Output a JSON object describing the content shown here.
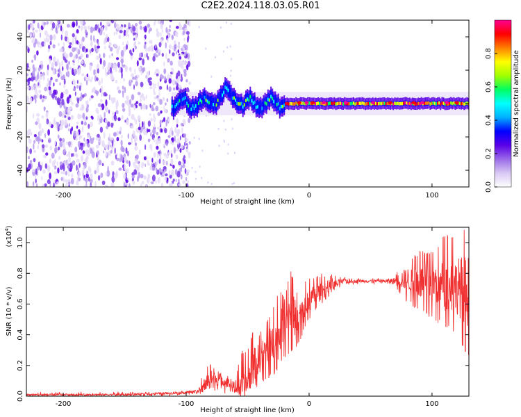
{
  "title": "C2E2.2024.118.03.05.R01",
  "colors": {
    "snr_line": "#f03030",
    "colormap": [
      "#ffffff",
      "#d8c8f4",
      "#9a6ae8",
      "#5a00e6",
      "#0000ff",
      "#00b0ff",
      "#00ffff",
      "#00ff60",
      "#a0ff00",
      "#ffff00",
      "#ff8000",
      "#ff0000",
      "#ff0090"
    ]
  },
  "chart_data": [
    {
      "type": "heatmap",
      "xlabel": "Height of straight line (km)",
      "ylabel": "Frequency (Hz)",
      "xlim": [
        -230,
        130
      ],
      "ylim": [
        -50,
        50
      ],
      "xticks": [
        -200,
        -100,
        0,
        100
      ],
      "yticks": [
        -40,
        -20,
        0,
        20,
        40
      ],
      "colorbar": {
        "label": "Normalized spectral amplitude",
        "range": [
          0.0,
          1.0
        ],
        "ticks": [
          0.0,
          0.2,
          0.4,
          0.6,
          0.8
        ]
      },
      "features": {
        "noise_region_x": [
          -230,
          -105
        ],
        "signal_band_x": [
          -112,
          130
        ],
        "signal_band_center_hz": 0,
        "signal_band_halfwidth_hz": 5
      }
    },
    {
      "type": "line",
      "xlabel": "Height of straight line (km)",
      "ylabel": "SNR (10 * v/v)",
      "y_exponent_label": "(x10",
      "y_exponent_power": "4",
      "y_exponent_close": ")",
      "xlim": [
        -230,
        130
      ],
      "ylim": [
        0,
        1.1
      ],
      "xticks": [
        -200,
        -100,
        0,
        100
      ],
      "yticks": [
        0.0,
        0.2,
        0.4,
        0.6,
        0.8,
        1.0
      ],
      "series": [
        {
          "x": [
            -230,
            -200,
            -150,
            -110,
            -90,
            -85,
            -80,
            -70,
            -60,
            -55,
            -50,
            -45,
            -40,
            -35,
            -30,
            -25,
            -20,
            -15,
            -10,
            -5,
            0,
            5,
            10,
            15,
            20,
            25,
            30,
            40,
            50,
            60,
            70,
            75,
            80,
            90,
            100,
            110,
            120,
            125,
            130
          ],
          "y": [
            0.01,
            0.01,
            0.01,
            0.02,
            0.03,
            0.08,
            0.12,
            0.1,
            0.06,
            0.04,
            0.1,
            0.2,
            0.25,
            0.3,
            0.35,
            0.38,
            0.5,
            0.55,
            0.5,
            0.55,
            0.62,
            0.66,
            0.68,
            0.7,
            0.72,
            0.74,
            0.75,
            0.75,
            0.75,
            0.75,
            0.75,
            0.76,
            0.76,
            0.74,
            0.74,
            0.72,
            0.72,
            0.7,
            0.68
          ],
          "max_y": [
            0.02,
            0.02,
            0.02,
            0.03,
            0.05,
            0.2,
            0.22,
            0.15,
            0.12,
            0.3,
            0.32,
            0.45,
            0.42,
            0.5,
            0.55,
            0.7,
            0.65,
            0.82,
            0.7,
            0.75,
            0.78,
            0.8,
            0.8,
            0.78,
            0.8,
            0.78,
            0.78,
            0.77,
            0.77,
            0.77,
            0.8,
            0.86,
            0.88,
            0.95,
            0.95,
            1.05,
            1.05,
            1.1,
            1.1
          ],
          "min_y": [
            0.0,
            0.0,
            0.0,
            0.0,
            0.01,
            0.02,
            0.04,
            0.02,
            0.01,
            0.01,
            0.02,
            0.04,
            0.06,
            0.1,
            0.12,
            0.18,
            0.25,
            0.28,
            0.3,
            0.4,
            0.5,
            0.55,
            0.6,
            0.64,
            0.68,
            0.7,
            0.72,
            0.73,
            0.73,
            0.73,
            0.72,
            0.65,
            0.6,
            0.55,
            0.5,
            0.45,
            0.4,
            0.3,
            0.25
          ]
        }
      ]
    }
  ]
}
